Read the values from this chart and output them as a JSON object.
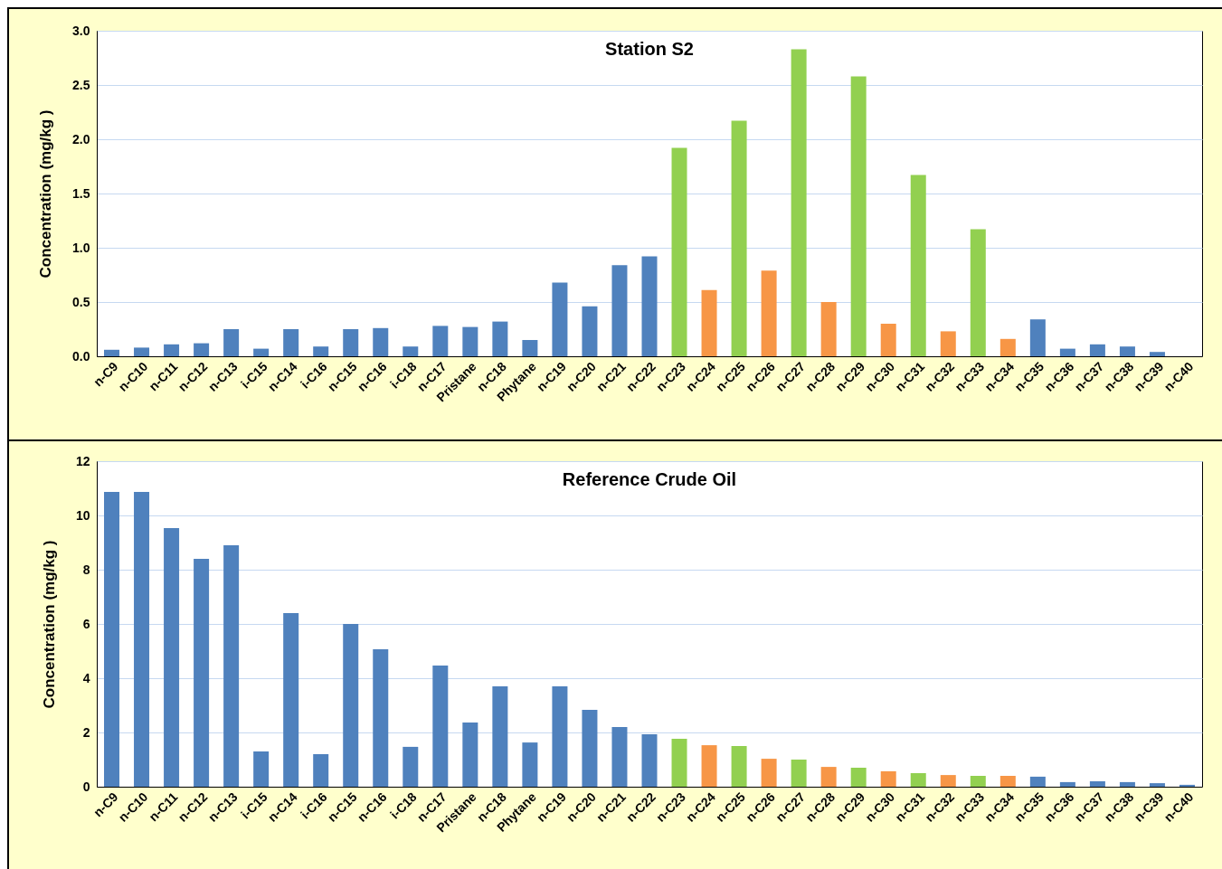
{
  "chart_data": [
    {
      "type": "bar",
      "title": "Station S2",
      "ylabel": "Concentration (mg/kg )",
      "grid": "y",
      "categories": [
        "n-C9",
        "n-C10",
        "n-C11",
        "n-C12",
        "n-C13",
        "i-C15",
        "n-C14",
        "i-C16",
        "n-C15",
        "n-C16",
        "i-C18",
        "n-C17",
        "Pristane",
        "n-C18",
        "Phytane",
        "n-C19",
        "n-C20",
        "n-C21",
        "n-C22",
        "n-C23",
        "n-C24",
        "n-C25",
        "n-C26",
        "n-C27",
        "n-C28",
        "n-C29",
        "n-C30",
        "n-C31",
        "n-C32",
        "n-C33",
        "n-C34",
        "n-C35",
        "n-C36",
        "n-C37",
        "n-C38",
        "n-C39",
        "n-C40"
      ],
      "values": [
        0.06,
        0.08,
        0.11,
        0.12,
        0.25,
        0.07,
        0.25,
        0.09,
        0.25,
        0.26,
        0.09,
        0.28,
        0.27,
        0.32,
        0.15,
        0.68,
        0.46,
        0.84,
        0.92,
        1.92,
        0.61,
        2.17,
        0.79,
        2.83,
        0.5,
        2.58,
        0.3,
        1.67,
        0.23,
        1.17,
        0.16,
        0.34,
        0.07,
        0.11,
        0.09,
        0.04,
        0
      ],
      "colors": [
        "#4f81bd",
        "#4f81bd",
        "#4f81bd",
        "#4f81bd",
        "#4f81bd",
        "#4f81bd",
        "#4f81bd",
        "#4f81bd",
        "#4f81bd",
        "#4f81bd",
        "#4f81bd",
        "#4f81bd",
        "#4f81bd",
        "#4f81bd",
        "#4f81bd",
        "#4f81bd",
        "#4f81bd",
        "#4f81bd",
        "#4f81bd",
        "#92d050",
        "#f79646",
        "#92d050",
        "#f79646",
        "#92d050",
        "#f79646",
        "#92d050",
        "#f79646",
        "#92d050",
        "#f79646",
        "#92d050",
        "#f79646",
        "#4f81bd",
        "#4f81bd",
        "#4f81bd",
        "#4f81bd",
        "#4f81bd",
        "#4f81bd"
      ],
      "ylim": [
        0,
        3
      ],
      "yticks": [
        {
          "value": 0,
          "label": "0.0"
        },
        0.5,
        {
          "value": 1,
          "label": "1.0"
        },
        1.5,
        {
          "value": 2,
          "label": "2.0"
        },
        2.5,
        {
          "value": 3,
          "label": "3.0"
        }
      ]
    },
    {
      "type": "bar",
      "title": "Reference Crude Oil",
      "ylabel": "Concentration (mg/kg )",
      "grid": "y",
      "categories": [
        "n-C9",
        "n-C10",
        "n-C11",
        "n-C12",
        "n-C13",
        "i-C15",
        "n-C14",
        "i-C16",
        "n-C15",
        "n-C16",
        "i-C18",
        "n-C17",
        "Pristane",
        "n-C18",
        "Phytane",
        "n-C19",
        "n-C20",
        "n-C21",
        "n-C22",
        "n-C23",
        "n-C24",
        "n-C25",
        "n-C26",
        "n-C27",
        "n-C28",
        "n-C29",
        "n-C30",
        "n-C31",
        "n-C32",
        "n-C33",
        "n-C34",
        "n-C35",
        "n-C36",
        "n-C37",
        "n-C38",
        "n-C39",
        "n-C40"
      ],
      "values": [
        10.87,
        10.87,
        9.53,
        8.4,
        8.9,
        1.3,
        6.4,
        1.2,
        6.0,
        5.07,
        1.47,
        4.47,
        2.37,
        3.7,
        1.63,
        3.7,
        2.83,
        2.2,
        1.93,
        1.77,
        1.53,
        1.5,
        1.03,
        1.0,
        0.73,
        0.7,
        0.57,
        0.5,
        0.43,
        0.4,
        0.4,
        0.37,
        0.17,
        0.2,
        0.17,
        0.13,
        0.07
      ],
      "colors": [
        "#4f81bd",
        "#4f81bd",
        "#4f81bd",
        "#4f81bd",
        "#4f81bd",
        "#4f81bd",
        "#4f81bd",
        "#4f81bd",
        "#4f81bd",
        "#4f81bd",
        "#4f81bd",
        "#4f81bd",
        "#4f81bd",
        "#4f81bd",
        "#4f81bd",
        "#4f81bd",
        "#4f81bd",
        "#4f81bd",
        "#4f81bd",
        "#92d050",
        "#f79646",
        "#92d050",
        "#f79646",
        "#92d050",
        "#f79646",
        "#92d050",
        "#f79646",
        "#92d050",
        "#f79646",
        "#92d050",
        "#f79646",
        "#4f81bd",
        "#4f81bd",
        "#4f81bd",
        "#4f81bd",
        "#4f81bd",
        "#4f81bd"
      ],
      "ylim": [
        0,
        12
      ],
      "yticks": [
        0,
        2,
        4,
        6,
        8,
        10,
        12
      ]
    }
  ]
}
